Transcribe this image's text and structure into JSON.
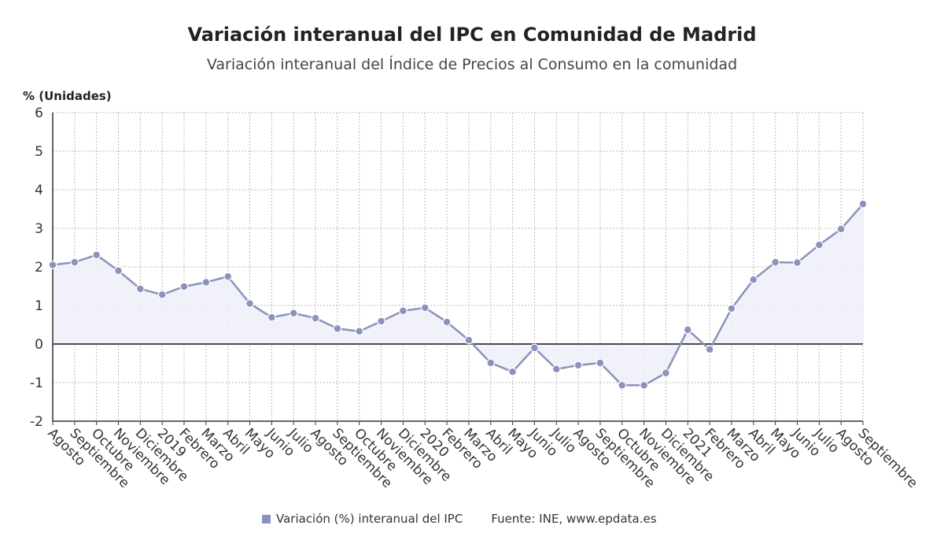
{
  "header": {
    "title": "Variación interanual del IPC en Comunidad de Madrid",
    "subtitle": "Variación interanual del Índice de Precios al Consumo en la comunidad"
  },
  "legend": {
    "series_label": "Variación (%) interanual del IPC",
    "source_prefix": "Fuente: INE,",
    "source_site": "www.epdata.es"
  },
  "colors": {
    "series": "#8b92bc",
    "fill": "#eef0f8",
    "zero_line": "#333333",
    "grid": "#bbbbbb"
  },
  "chart_data": {
    "type": "line",
    "ylabel": "% (Unidades)",
    "ylim": [
      -2,
      6
    ],
    "yticks": [
      -2,
      -1,
      0,
      1,
      2,
      3,
      4,
      5,
      6
    ],
    "grid": true,
    "legend_position": "bottom",
    "categories": [
      "Agosto",
      "Septiembre",
      "Octubre",
      "Noviembre",
      "Diciembre",
      "2019",
      "Febrero",
      "Marzo",
      "Abril",
      "Mayo",
      "Junio",
      "Julio",
      "Agosto",
      "Septiembre",
      "Octubre",
      "Noviembre",
      "Diciembre",
      "2020",
      "Febrero",
      "Marzo",
      "Abril",
      "Mayo",
      "Junio",
      "Julio",
      "Agosto",
      "Septiembre",
      "Octubre",
      "Noviembre",
      "Diciembre",
      "2021",
      "Febrero",
      "Marzo",
      "Abril",
      "Mayo",
      "Junio",
      "Julio",
      "Agosto",
      "Septiembre"
    ],
    "series": [
      {
        "name": "Variación (%) interanual del IPC",
        "values": [
          2.05,
          2.12,
          2.31,
          1.9,
          1.43,
          1.28,
          1.49,
          1.6,
          1.75,
          1.05,
          0.69,
          0.8,
          0.67,
          0.4,
          0.33,
          0.59,
          0.86,
          0.94,
          0.57,
          0.1,
          -0.49,
          -0.72,
          -0.1,
          -0.65,
          -0.55,
          -0.49,
          -1.07,
          -1.07,
          -0.75,
          0.37,
          -0.14,
          0.92,
          1.67,
          2.12,
          2.11,
          2.57,
          2.98,
          3.63
        ]
      }
    ]
  }
}
